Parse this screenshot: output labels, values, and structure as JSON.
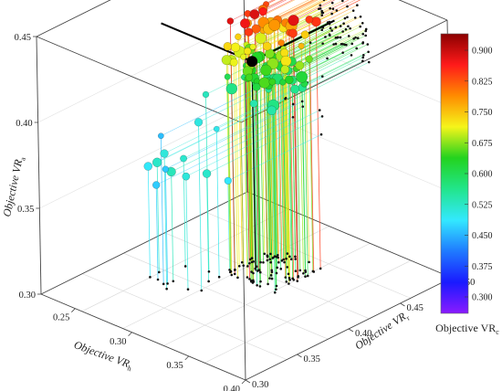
{
  "chart_data": {
    "type": "scatter",
    "projection": "3d",
    "title": "",
    "x_axis": {
      "title": "Objective VR",
      "title_sub": "h",
      "ticks": [
        "0.25",
        "0.30",
        "0.35",
        "0.40"
      ],
      "range": [
        0.22,
        0.4
      ]
    },
    "y_axis": {
      "title": "Objective VR",
      "title_sub": "r",
      "ticks": [
        "0.30",
        "0.35",
        "0.40",
        "0.45",
        "0.50"
      ],
      "range": [
        0.3,
        0.5
      ]
    },
    "z_axis": {
      "title": "Objective VR",
      "title_sub": "a",
      "ticks": [
        "0.30",
        "0.35",
        "0.40",
        "0.45"
      ],
      "range": [
        0.3,
        0.45
      ]
    },
    "color_axis": {
      "title": "Objective VR",
      "title_sub": "c",
      "ticks": [
        "0.300",
        "0.375",
        "0.450",
        "0.525",
        "0.600",
        "0.675",
        "0.750",
        "0.825",
        "0.900"
      ],
      "colors": [
        "#8a1bff",
        "#1a1aff",
        "#1f7aff",
        "#33e8ff",
        "#22e58c",
        "#23d31e",
        "#f5f51a",
        "#ff8c00",
        "#ff1a1a",
        "#8b0000"
      ]
    },
    "highlight_point": {
      "h": 0.3,
      "r": 0.42,
      "a": 0.422,
      "color": "#000000"
    },
    "projection_lines": true,
    "grid": true,
    "description_note_visible": false
  }
}
